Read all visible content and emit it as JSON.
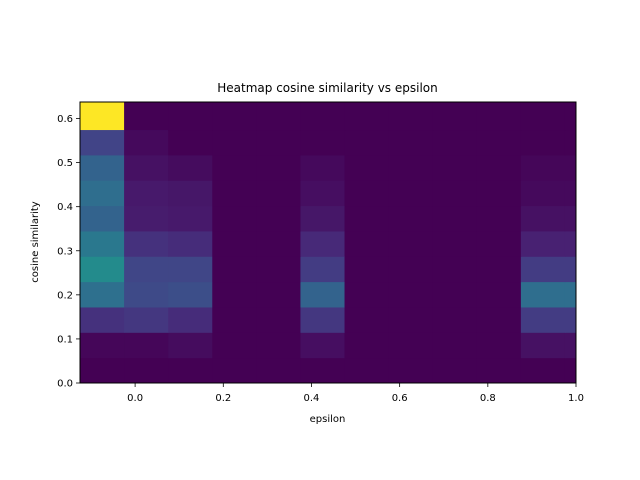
{
  "chart_data": {
    "type": "heatmap",
    "title": "Heatmap cosine similarity vs epsilon",
    "xlabel": "epsilon",
    "ylabel": "cosine similarity",
    "xlim": [
      -0.125,
      1.0
    ],
    "ylim": [
      0.0,
      0.6375
    ],
    "x_ticks": [
      0.0,
      0.2,
      0.4,
      0.6,
      0.8,
      1.0
    ],
    "y_ticks": [
      0.0,
      0.1,
      0.2,
      0.3,
      0.4,
      0.5,
      0.6
    ],
    "x_bin_edges": [
      -0.125,
      -0.025,
      0.075,
      0.175,
      0.275,
      0.375,
      0.475,
      0.575,
      0.675,
      0.775,
      0.875,
      0.975,
      1.0
    ],
    "y_bin_edges": [
      0.0,
      0.0575,
      0.115,
      0.1725,
      0.23,
      0.2875,
      0.345,
      0.4025,
      0.46,
      0.5175,
      0.575,
      0.6375
    ],
    "colormap": "viridis",
    "grid": false,
    "values": [
      [
        0.0,
        0.0,
        0.0,
        0.0,
        0.0,
        0.0,
        0.0,
        0.0,
        0.0,
        0.0,
        0.0,
        0.0
      ],
      [
        0.02,
        0.02,
        0.04,
        0.0,
        0.0,
        0.05,
        0.0,
        0.0,
        0.0,
        0.0,
        0.06,
        0.06
      ],
      [
        0.18,
        0.2,
        0.16,
        0.0,
        0.0,
        0.2,
        0.0,
        0.0,
        0.0,
        0.0,
        0.22,
        0.22
      ],
      [
        0.46,
        0.28,
        0.3,
        0.0,
        0.0,
        0.4,
        0.0,
        0.0,
        0.0,
        0.0,
        0.45,
        0.45
      ],
      [
        0.6,
        0.26,
        0.26,
        0.0,
        0.0,
        0.22,
        0.0,
        0.0,
        0.0,
        0.0,
        0.22,
        0.22
      ],
      [
        0.5,
        0.18,
        0.16,
        0.0,
        0.0,
        0.15,
        0.0,
        0.0,
        0.0,
        0.0,
        0.12,
        0.12
      ],
      [
        0.4,
        0.1,
        0.09,
        0.0,
        0.0,
        0.08,
        0.0,
        0.0,
        0.0,
        0.0,
        0.06,
        0.06
      ],
      [
        0.45,
        0.09,
        0.08,
        0.0,
        0.0,
        0.05,
        0.0,
        0.0,
        0.0,
        0.0,
        0.03,
        0.03
      ],
      [
        0.4,
        0.06,
        0.04,
        0.0,
        0.0,
        0.03,
        0.0,
        0.0,
        0.0,
        0.0,
        0.02,
        0.02
      ],
      [
        0.25,
        0.03,
        0.0,
        0.0,
        0.0,
        0.0,
        0.0,
        0.0,
        0.0,
        0.0,
        0.0,
        0.0
      ],
      [
        1.0,
        0.0,
        0.0,
        0.0,
        0.0,
        0.0,
        0.0,
        0.0,
        0.0,
        0.0,
        0.0,
        0.0
      ]
    ]
  }
}
